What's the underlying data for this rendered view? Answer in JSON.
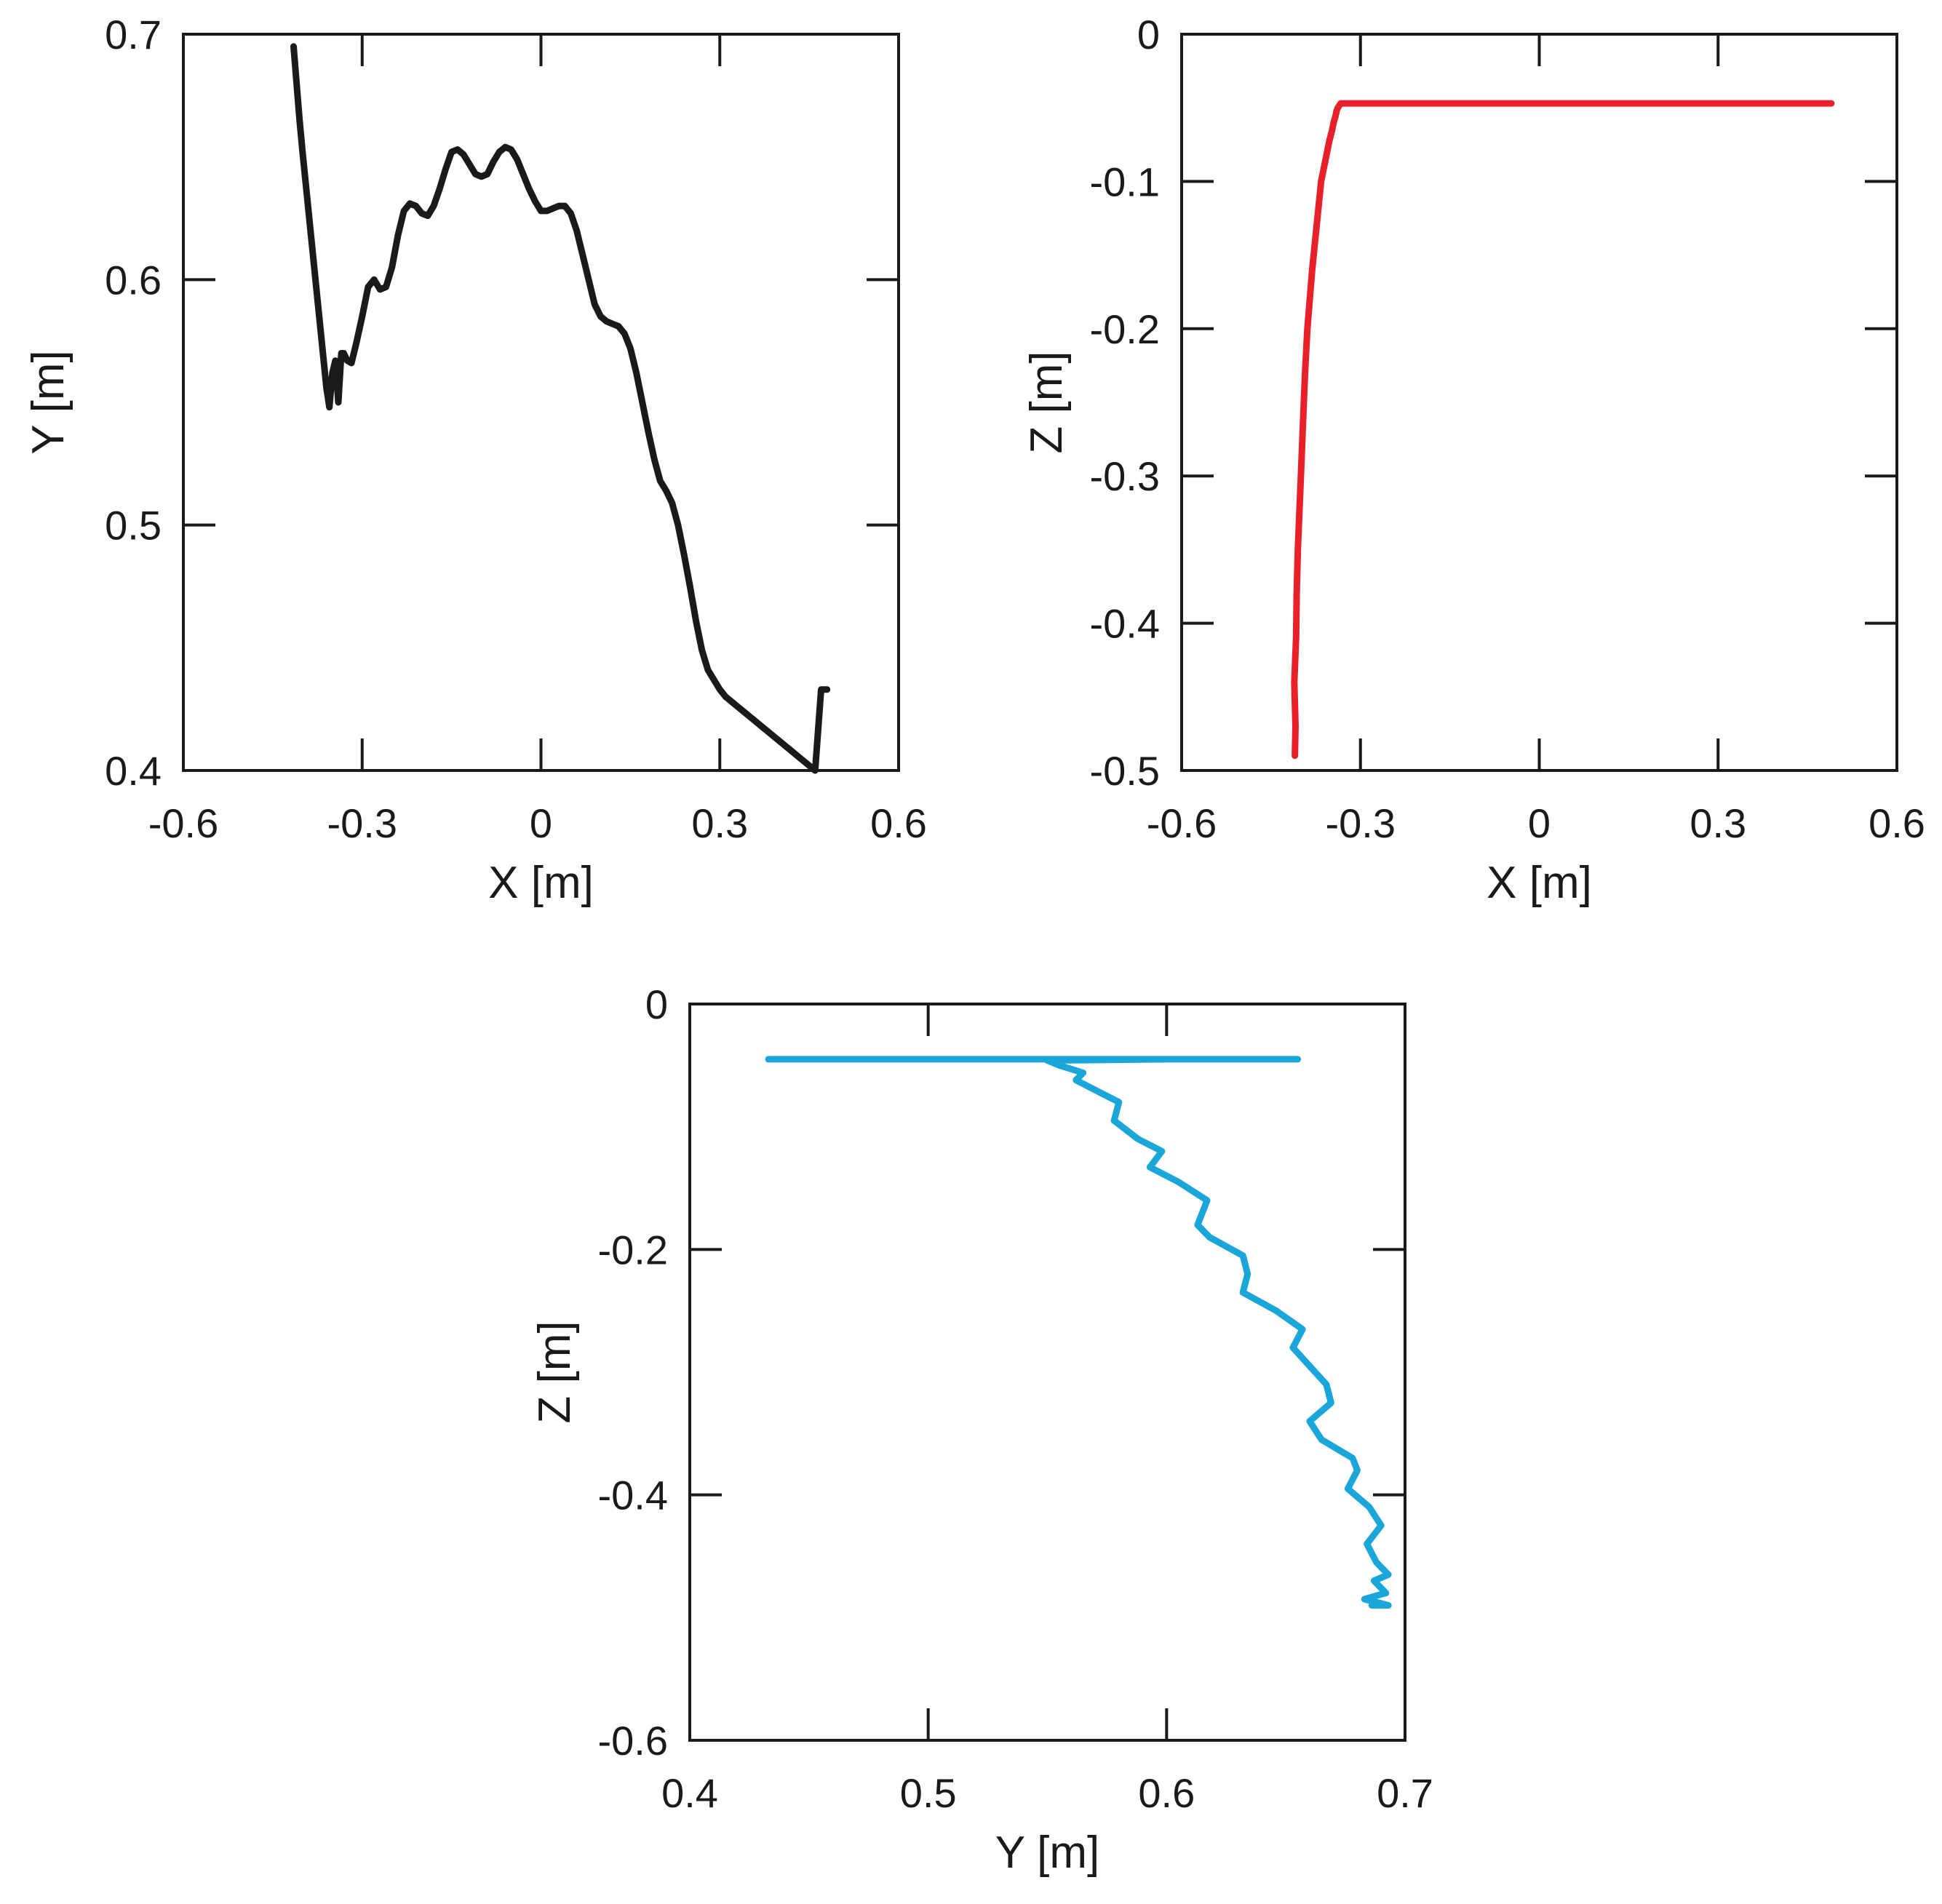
{
  "chart_data": [
    {
      "type": "line",
      "xlabel": "X [m]",
      "ylabel": "Y [m]",
      "xlim": [
        -0.6,
        0.6
      ],
      "ylim": [
        0.4,
        0.7
      ],
      "xticks": [
        -0.6,
        -0.3,
        0,
        0.3,
        0.6
      ],
      "yticks": [
        0.4,
        0.5,
        0.6,
        0.7
      ],
      "xtick_labels": [
        "-0.6",
        "-0.3",
        "0",
        "0.3",
        "0.6"
      ],
      "ytick_labels": [
        "0.4",
        "0.5",
        "0.6",
        "0.7"
      ],
      "grid": false,
      "color": "#1a1a1a",
      "series": [
        {
          "x": [
            -0.415,
            -0.41,
            -0.405,
            -0.4,
            -0.395,
            -0.39,
            -0.385,
            -0.38,
            -0.375,
            -0.37,
            -0.365,
            -0.36,
            -0.355,
            -0.35,
            -0.345,
            -0.34,
            -0.335,
            -0.331,
            -0.325,
            -0.318,
            -0.31,
            -0.3,
            -0.29,
            -0.28,
            -0.27,
            -0.26,
            -0.25,
            -0.24,
            -0.23,
            -0.22,
            -0.21,
            -0.2,
            -0.19,
            -0.18,
            -0.17,
            -0.16,
            -0.15,
            -0.14,
            -0.13,
            -0.12,
            -0.11,
            -0.1,
            -0.09,
            -0.08,
            -0.07,
            -0.06,
            -0.05,
            -0.04,
            -0.03,
            -0.02,
            -0.01,
            0.0,
            0.01,
            0.02,
            0.03,
            0.04,
            0.05,
            0.06,
            0.07,
            0.08,
            0.09,
            0.1,
            0.11,
            0.12,
            0.13,
            0.14,
            0.15,
            0.16,
            0.17,
            0.18,
            0.19,
            0.2,
            0.21,
            0.22,
            0.23,
            0.24,
            0.25,
            0.26,
            0.27,
            0.28,
            0.29,
            0.3,
            0.31,
            0.32,
            0.33,
            0.34,
            0.35,
            0.36,
            0.37,
            0.38,
            0.39,
            0.4,
            0.41,
            0.42,
            0.43,
            0.44,
            0.45,
            0.46,
            0.47,
            0.48
          ],
          "y": [
            0.695,
            0.68,
            0.665,
            0.652,
            0.64,
            0.628,
            0.616,
            0.604,
            0.592,
            0.58,
            0.568,
            0.556,
            0.548,
            0.562,
            0.567,
            0.55,
            0.57,
            0.57,
            0.567,
            0.566,
            0.574,
            0.585,
            0.597,
            0.6,
            0.596,
            0.597,
            0.605,
            0.618,
            0.628,
            0.631,
            0.63,
            0.627,
            0.626,
            0.63,
            0.637,
            0.645,
            0.652,
            0.653,
            0.651,
            0.647,
            0.643,
            0.642,
            0.643,
            0.648,
            0.652,
            0.654,
            0.653,
            0.649,
            0.643,
            0.637,
            0.632,
            0.628,
            0.628,
            0.629,
            0.63,
            0.63,
            0.627,
            0.62,
            0.61,
            0.6,
            0.59,
            0.585,
            0.583,
            0.582,
            0.581,
            0.578,
            0.572,
            0.562,
            0.55,
            0.538,
            0.527,
            0.518,
            0.514,
            0.509,
            0.5,
            0.488,
            0.475,
            0.461,
            0.449,
            0.441,
            0.437,
            0.433,
            0.43,
            0.428,
            0.426,
            0.424,
            0.422,
            0.42,
            0.418,
            0.416,
            0.414,
            0.412,
            0.41,
            0.408,
            0.406,
            0.404,
            0.402,
            0.4,
            0.433,
            0.433
          ]
        }
      ]
    },
    {
      "type": "line",
      "xlabel": "X [m]",
      "ylabel": "Z [m]",
      "xlim": [
        -0.6,
        0.6
      ],
      "ylim": [
        -0.5,
        0
      ],
      "xticks": [
        -0.6,
        -0.3,
        0,
        0.3,
        0.6
      ],
      "yticks": [
        -0.5,
        -0.4,
        -0.3,
        -0.2,
        -0.1,
        0
      ],
      "xtick_labels": [
        "-0.6",
        "-0.3",
        "0",
        "0.3",
        "0.6"
      ],
      "ytick_labels": [
        "-0.5",
        "-0.4",
        "-0.3",
        "-0.2",
        "-0.1",
        "0"
      ],
      "grid": false,
      "color": "#e8202a",
      "series": [
        {
          "x": [
            -0.41,
            -0.409,
            -0.411,
            -0.408,
            -0.407,
            -0.405,
            -0.402,
            -0.399,
            -0.396,
            -0.393,
            -0.389,
            -0.385,
            -0.381,
            -0.376,
            -0.371,
            -0.366,
            -0.361,
            -0.356,
            -0.352,
            -0.348,
            -0.345,
            -0.342,
            -0.34,
            -0.338,
            -0.335,
            -0.333,
            -0.2,
            0.0,
            0.2,
            0.4,
            0.49
          ],
          "y": [
            -0.49,
            -0.47,
            -0.44,
            -0.41,
            -0.38,
            -0.35,
            -0.32,
            -0.29,
            -0.26,
            -0.23,
            -0.2,
            -0.18,
            -0.16,
            -0.14,
            -0.12,
            -0.1,
            -0.09,
            -0.08,
            -0.072,
            -0.066,
            -0.06,
            -0.056,
            -0.052,
            -0.05,
            -0.048,
            -0.047,
            -0.047,
            -0.047,
            -0.047,
            -0.047,
            -0.047
          ]
        }
      ]
    },
    {
      "type": "line",
      "xlabel": "Y [m]",
      "ylabel": "Z [m]",
      "xlim": [
        0.4,
        0.7
      ],
      "ylim": [
        -0.6,
        0
      ],
      "xticks": [
        0.4,
        0.5,
        0.6,
        0.7
      ],
      "yticks": [
        -0.6,
        -0.4,
        -0.2,
        0
      ],
      "xtick_labels": [
        "0.4",
        "0.5",
        "0.6",
        "0.7"
      ],
      "ytick_labels": [
        "-0.6",
        "-0.4",
        "-0.2",
        "0"
      ],
      "grid": false,
      "color": "#1aa6d8",
      "series": [
        {
          "x": [
            0.433,
            0.5,
            0.6,
            0.655,
            0.6,
            0.55,
            0.555,
            0.565,
            0.562,
            0.57,
            0.58,
            0.578,
            0.588,
            0.598,
            0.593,
            0.605,
            0.617,
            0.613,
            0.618,
            0.632,
            0.634,
            0.632,
            0.646,
            0.657,
            0.653,
            0.66,
            0.667,
            0.669,
            0.66,
            0.665,
            0.678,
            0.68,
            0.676,
            0.685,
            0.69,
            0.684,
            0.688,
            0.693,
            0.687,
            0.692,
            0.683,
            0.693,
            0.686
          ],
          "y": [
            -0.045,
            -0.045,
            -0.045,
            -0.045,
            -0.045,
            -0.046,
            -0.05,
            -0.056,
            -0.062,
            -0.07,
            -0.08,
            -0.095,
            -0.11,
            -0.12,
            -0.133,
            -0.145,
            -0.16,
            -0.18,
            -0.19,
            -0.205,
            -0.22,
            -0.235,
            -0.25,
            -0.265,
            -0.28,
            -0.295,
            -0.31,
            -0.325,
            -0.34,
            -0.355,
            -0.37,
            -0.38,
            -0.395,
            -0.41,
            -0.425,
            -0.44,
            -0.455,
            -0.465,
            -0.47,
            -0.48,
            -0.485,
            -0.49,
            -0.49
          ]
        }
      ]
    }
  ]
}
